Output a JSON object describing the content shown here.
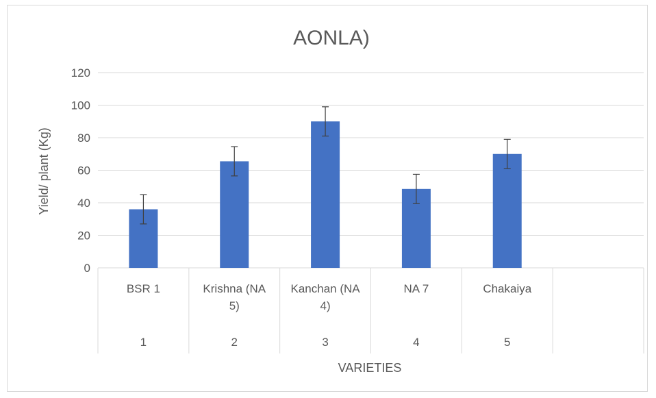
{
  "chart_data": {
    "type": "bar",
    "title": "AONLA)",
    "xlabel": "VARIETIES",
    "ylabel": "Yield/ plant (Kg)",
    "ylim": [
      0,
      120
    ],
    "yticks": [
      "0",
      "20",
      "40",
      "60",
      "80",
      "100",
      "120"
    ],
    "categories": [
      {
        "name_lines": [
          "BSR 1"
        ],
        "group": "1"
      },
      {
        "name_lines": [
          "Krishna (NA",
          "5)"
        ],
        "group": "2"
      },
      {
        "name_lines": [
          "Kanchan (NA",
          "4)"
        ],
        "group": "3"
      },
      {
        "name_lines": [
          "NA 7"
        ],
        "group": "4"
      },
      {
        "name_lines": [
          "Chakaiya"
        ],
        "group": "5"
      },
      {
        "name_lines": [],
        "group": ""
      }
    ],
    "values": [
      36,
      65.5,
      90,
      48.5,
      70,
      null
    ],
    "error": [
      9,
      9,
      9,
      9,
      9,
      null
    ],
    "bar_color": "#4472c4",
    "grid": true,
    "legend": "none"
  }
}
